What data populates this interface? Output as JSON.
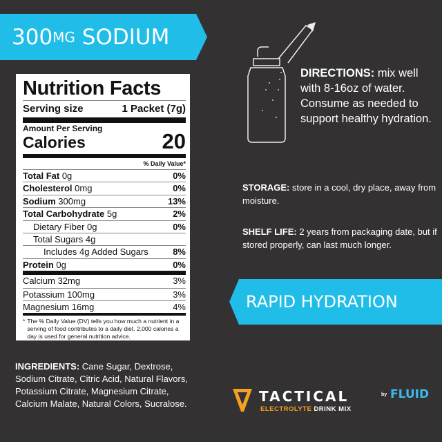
{
  "banner_top": {
    "amount": "300",
    "unit": "MG",
    "word": "SODIUM"
  },
  "nutrition": {
    "title": "Nutrition Facts",
    "serving_label": "Serving size",
    "serving_value": "1 Packet (7g)",
    "amount_per_serving": "Amount Per Serving",
    "calories_label": "Calories",
    "calories_value": "20",
    "dv_header": "% Daily Value*",
    "rows": [
      {
        "label": "Total Fat",
        "amount": "0g",
        "dv": "0%"
      },
      {
        "label": "Cholesterol",
        "amount": "0mg",
        "dv": "0%"
      },
      {
        "label": "Sodium",
        "amount": "300mg",
        "dv": "13%"
      },
      {
        "label": "Total Carbohydrate",
        "amount": "5g",
        "dv": "2%"
      },
      {
        "label": "Dietary Fiber 0g",
        "dv": "0%"
      },
      {
        "label": "Total Sugars 4g",
        "dv": ""
      },
      {
        "label": "Includes 4g Added Sugars",
        "dv": "8%"
      },
      {
        "label": "Protein",
        "amount": "0g",
        "dv": "0%"
      }
    ],
    "minerals": [
      {
        "label": "Calcium 32mg",
        "dv": "3%"
      },
      {
        "label": "Potassium 100mg",
        "dv": "3%"
      },
      {
        "label": "Magnesium 16mg",
        "dv": "4%"
      }
    ],
    "footnote": "The % Daily Value (DV) tells you how much a nutrient in a serving of food contributes to a daily diet. 2,000 calories a day is used for general nutrition advice."
  },
  "directions": {
    "label": "DIRECTIONS:",
    "text": " mix well with 8-16oz of water. Consume as needed to support healthy hydration."
  },
  "storage": {
    "label": "STORAGE:",
    "text": " store in a cool, dry place, away from moisture."
  },
  "shelf_life": {
    "label": "SHELF LIFE:",
    "text": " 2 years from packaging date, but if stored properly, can last much longer."
  },
  "banner_mid": "RAPID HYDRATION",
  "ingredients": {
    "label": "INGREDIENTS:",
    "text": " Cane Sugar, Dextrose, Sodium Citrate, Citric Acid, Natural Flavors, Potassium Citrate, Magnesium Citrate, Calcium Malate, Natural Colors, Sucralose."
  },
  "brand": {
    "name": "TACTICAL",
    "sub1": "ELECTROLYTE",
    "sub2": "DRINK MIX",
    "by": "by",
    "partner": "FLUID"
  },
  "colors": {
    "accent": "#1fbde8",
    "background": "#333132",
    "brand_orange": "#f5a023"
  }
}
